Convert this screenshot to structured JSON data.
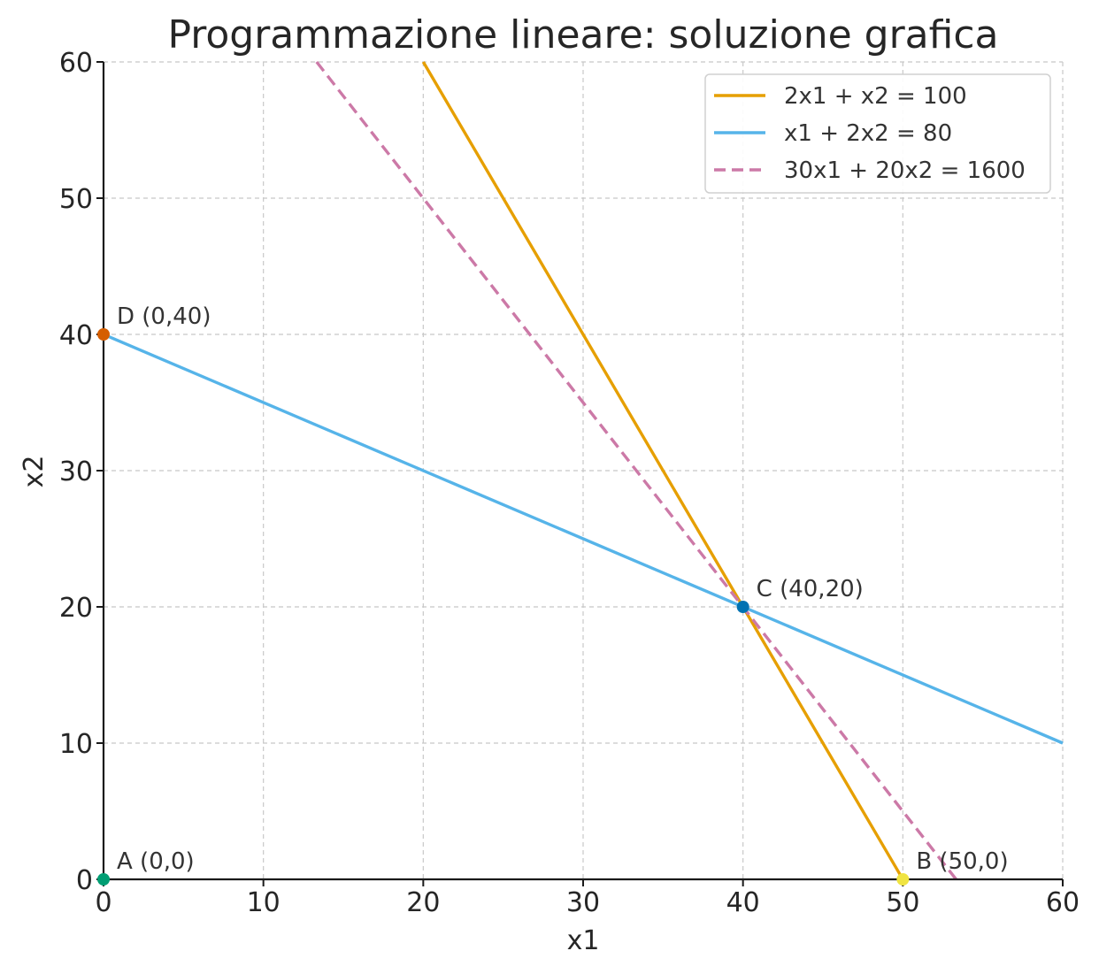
{
  "chart_data": {
    "type": "line",
    "title": "Programmazione lineare: soluzione grafica",
    "xlabel": "x1",
    "ylabel": "x2",
    "xlim": [
      0,
      60
    ],
    "ylim": [
      0,
      60
    ],
    "xticks": [
      "0",
      "10",
      "20",
      "30",
      "40",
      "50",
      "60"
    ],
    "yticks": [
      "0",
      "10",
      "20",
      "30",
      "40",
      "50",
      "60"
    ],
    "grid": true,
    "legend_position": "top-right",
    "series": [
      {
        "name": "2x1 + x2 = 100",
        "x": [
          20,
          50
        ],
        "y": [
          60,
          0
        ],
        "color": "#E69F00",
        "dash": "solid"
      },
      {
        "name": "x1 + 2x2 = 80",
        "x": [
          0,
          60
        ],
        "y": [
          40,
          10
        ],
        "color": "#56B4E9",
        "dash": "solid"
      },
      {
        "name": "30x1 + 20x2 = 1600",
        "x": [
          13.33,
          53.33
        ],
        "y": [
          60,
          0
        ],
        "color": "#CC79A7",
        "dash": "dashed"
      }
    ],
    "points": [
      {
        "label": "A (0,0)",
        "x": 0,
        "y": 0,
        "color": "#009E73"
      },
      {
        "label": "B (50,0)",
        "x": 50,
        "y": 0,
        "color": "#F0E442"
      },
      {
        "label": "C (40,20)",
        "x": 40,
        "y": 20,
        "color": "#0072B2"
      },
      {
        "label": "D (0,40)",
        "x": 0,
        "y": 40,
        "color": "#D55E00"
      }
    ]
  }
}
